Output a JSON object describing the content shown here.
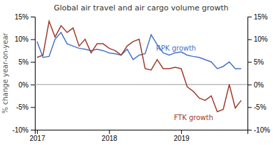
{
  "chart_data": {
    "type": "line",
    "title": "Global air travel and air cargo volume growth",
    "ylabel": "% change year-on-year",
    "x": [
      2017.0,
      2017.083,
      2017.167,
      2017.25,
      2017.333,
      2017.417,
      2017.5,
      2017.583,
      2017.667,
      2017.75,
      2017.833,
      2017.917,
      2018.0,
      2018.083,
      2018.167,
      2018.25,
      2018.333,
      2018.417,
      2018.5,
      2018.583,
      2018.667,
      2018.75,
      2018.833,
      2018.917,
      2019.0,
      2019.083,
      2019.167,
      2019.25,
      2019.333,
      2019.417,
      2019.5,
      2019.583,
      2019.667,
      2019.75,
      2019.833
    ],
    "series": [
      {
        "color": "#4472C4",
        "values": [
          9.5,
          6.0,
          6.2,
          10.0,
          11.5,
          9.0,
          8.5,
          8.0,
          7.8,
          7.5,
          7.8,
          7.5,
          7.0,
          6.8,
          6.5,
          7.8,
          5.5,
          6.5,
          6.8,
          11.0,
          8.8,
          7.0,
          6.5,
          7.0,
          7.2,
          6.5,
          6.2,
          6.0,
          5.5,
          5.0,
          3.5,
          4.0,
          5.0,
          3.5,
          3.5
        ]
      },
      {
        "color": "#9E3B2A",
        "values": [
          6.0,
          6.5,
          14.0,
          10.5,
          13.0,
          11.5,
          12.5,
          8.5,
          10.0,
          7.0,
          9.0,
          9.0,
          8.0,
          7.5,
          6.5,
          8.5,
          9.5,
          10.0,
          3.5,
          3.2,
          5.5,
          3.5,
          3.5,
          3.8,
          3.5,
          -0.5,
          -1.5,
          -3.0,
          -3.5,
          -2.5,
          -6.0,
          -5.5,
          0.0,
          -5.2,
          -3.5
        ]
      }
    ],
    "annotations": [
      {
        "text": "RPK growth",
        "x": 2018.65,
        "y": 7.5
      },
      {
        "text": "FTK growth",
        "x": 2018.9,
        "y": -7.8
      }
    ],
    "xlim": [
      2016.97,
      2019.92
    ],
    "xticks": [
      2017.0,
      2018.0,
      2019.0
    ],
    "ylim": [
      -10,
      15
    ],
    "yticks": [
      {
        "value": -10,
        "label": "-10%"
      },
      {
        "value": -5,
        "label": "-5%"
      },
      {
        "value": 0,
        "label": "0%"
      },
      {
        "value": 5,
        "label": "5%"
      },
      {
        "value": 10,
        "label": "10%"
      },
      {
        "value": 15,
        "label": "15%"
      }
    ],
    "y2lim": [
      -10,
      15
    ],
    "y2ticks": [
      {
        "value": -10,
        "label": "-10%"
      },
      {
        "value": -5,
        "label": "-5%"
      },
      {
        "value": 0,
        "label": "0%"
      },
      {
        "value": 5,
        "label": "5%"
      },
      {
        "value": 10,
        "label": "10%"
      },
      {
        "value": 15,
        "label": "15%"
      }
    ],
    "grid": false
  }
}
